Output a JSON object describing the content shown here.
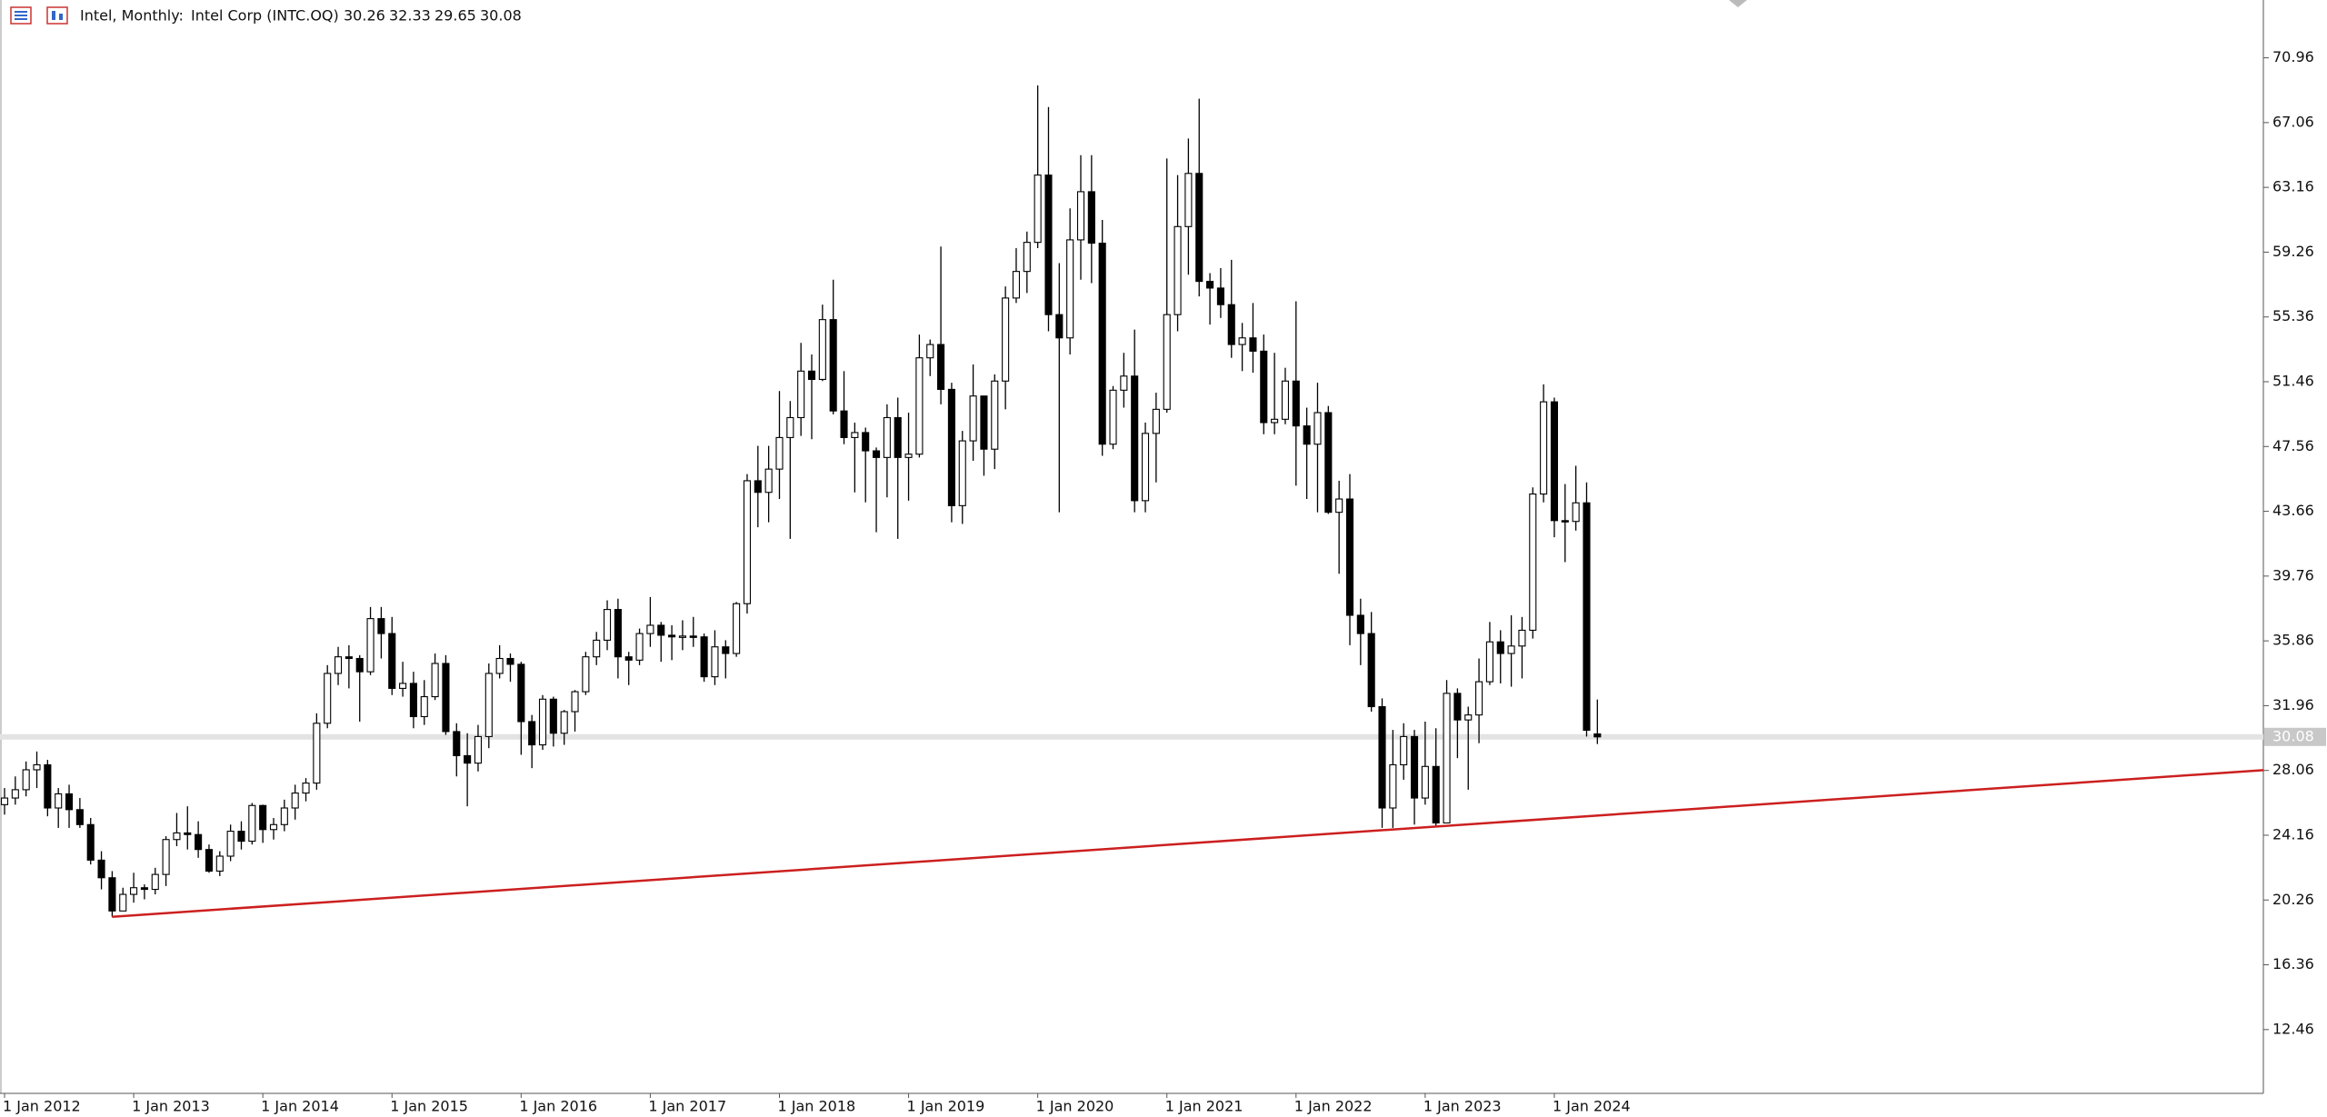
{
  "chart_data": {
    "type": "candlestick",
    "title": "Intel, Monthly:",
    "subtitle": "Intel Corp (INTC.OQ)",
    "categories": [
      "1 Jan 2012",
      null,
      null,
      null,
      null,
      null,
      null,
      null,
      null,
      null,
      null,
      null,
      "1 Jan 2013",
      null,
      null,
      null,
      null,
      null,
      null,
      null,
      null,
      null,
      null,
      null,
      "1 Jan 2014",
      null,
      null,
      null,
      null,
      null,
      null,
      null,
      null,
      null,
      null,
      null,
      "1 Jan 2015",
      null,
      null,
      null,
      null,
      null,
      null,
      null,
      null,
      null,
      null,
      null,
      "1 Jan 2016",
      null,
      null,
      null,
      null,
      null,
      null,
      null,
      null,
      null,
      null,
      null,
      "1 Jan 2017",
      null,
      null,
      null,
      null,
      null,
      null,
      null,
      null,
      null,
      null,
      null,
      "1 Jan 2018",
      null,
      null,
      null,
      null,
      null,
      null,
      null,
      null,
      null,
      null,
      null,
      "1 Jan 2019",
      null,
      null,
      null,
      null,
      null,
      null,
      null,
      null,
      null,
      null,
      null,
      "1 Jan 2020",
      null,
      null,
      null,
      null,
      null,
      null,
      null,
      null,
      null,
      null,
      null,
      "1 Jan 2021",
      null,
      null,
      null,
      null,
      null,
      null,
      null,
      null,
      null,
      null,
      null,
      "1 Jan 2022",
      null,
      null,
      null,
      null,
      null,
      null,
      null,
      null,
      null,
      null,
      null,
      "1 Jan 2023",
      null,
      null,
      null,
      null,
      null,
      null,
      null,
      null,
      null,
      null,
      null,
      "1 Jan 2024",
      null,
      null,
      null,
      null
    ],
    "open": [
      26.0,
      26.4,
      26.9,
      28.1,
      28.4,
      25.8,
      26.65,
      25.7,
      24.8,
      22.66,
      21.6,
      19.6,
      20.6,
      21.0,
      20.9,
      21.8,
      23.9,
      24.3,
      24.2,
      23.3,
      22.0,
      22.9,
      24.4,
      23.8,
      25.95,
      24.5,
      24.8,
      25.8,
      26.7,
      27.3,
      30.9,
      33.9,
      34.9,
      34.8,
      34.0,
      37.2,
      36.3,
      33.0,
      33.3,
      31.3,
      32.5,
      34.5,
      30.4,
      28.95,
      28.5,
      30.1,
      33.9,
      34.8,
      34.45,
      31.0,
      29.6,
      32.35,
      30.3,
      31.6,
      32.8,
      34.9,
      35.9,
      37.75,
      34.9,
      34.7,
      36.3,
      36.8,
      36.2,
      36.1,
      36.15,
      36.1,
      33.7,
      35.5,
      35.1,
      38.1,
      45.5,
      44.8,
      46.2,
      48.1,
      49.3,
      52.1,
      51.6,
      55.2,
      49.7,
      48.1,
      48.4,
      47.3,
      46.9,
      49.3,
      46.9,
      47.1,
      52.9,
      53.7,
      51.0,
      44.0,
      47.9,
      50.6,
      47.4,
      51.5,
      56.5,
      58.1,
      59.85,
      63.9,
      55.5,
      54.1,
      60.0,
      62.9,
      59.8,
      47.7,
      50.95,
      51.8,
      44.3,
      48.35,
      49.8,
      55.5,
      60.8,
      64.0,
      57.5,
      57.1,
      56.1,
      53.7,
      54.1,
      53.3,
      49.0,
      49.2,
      51.5,
      48.8,
      47.7,
      49.6,
      43.6,
      44.4,
      37.4,
      36.3,
      31.9,
      25.8,
      28.4,
      30.1,
      26.4,
      28.3,
      24.9,
      32.7,
      31.1,
      31.4,
      33.4,
      35.8,
      35.1,
      35.55,
      36.5,
      44.7,
      50.25,
      43.1,
      43.05,
      44.17,
      30.26
    ],
    "high": [
      27.0,
      27.7,
      28.6,
      29.2,
      28.7,
      27.0,
      27.2,
      26.4,
      25.2,
      23.2,
      22.0,
      21.0,
      21.9,
      21.2,
      22.2,
      24.1,
      25.5,
      25.9,
      25.0,
      23.6,
      23.2,
      24.8,
      25.0,
      26.1,
      26.0,
      25.2,
      26.3,
      27.2,
      27.6,
      31.5,
      34.4,
      35.5,
      35.6,
      35.0,
      37.9,
      37.9,
      37.3,
      34.6,
      34.0,
      33.5,
      35.1,
      35.0,
      30.9,
      30.3,
      30.8,
      34.5,
      35.6,
      35.1,
      34.6,
      31.4,
      32.6,
      32.5,
      31.7,
      32.9,
      35.2,
      36.4,
      38.3,
      38.4,
      35.2,
      36.6,
      38.5,
      37.0,
      36.8,
      37.1,
      37.3,
      36.3,
      36.5,
      35.9,
      38.2,
      45.9,
      47.6,
      47.6,
      50.9,
      50.3,
      53.8,
      53.1,
      56.1,
      57.6,
      52.1,
      49.0,
      48.7,
      47.5,
      50.1,
      50.5,
      49.6,
      54.3,
      54.0,
      59.6,
      51.4,
      48.5,
      52.5,
      50.6,
      51.9,
      57.2,
      59.5,
      60.5,
      69.3,
      68.0,
      58.6,
      61.9,
      65.1,
      65.1,
      61.2,
      51.2,
      53.2,
      54.6,
      49.0,
      50.8,
      64.9,
      63.9,
      66.1,
      68.5,
      58.0,
      58.3,
      58.8,
      55.0,
      56.2,
      54.3,
      53.2,
      52.3,
      56.3,
      49.9,
      51.4,
      50.0,
      45.5,
      45.9,
      38.4,
      37.6,
      32.4,
      30.5,
      30.9,
      30.5,
      31.0,
      30.6,
      33.5,
      33.0,
      31.9,
      34.8,
      37.0,
      36.5,
      37.4,
      37.3,
      45.1,
      51.3,
      50.5,
      45.3,
      46.4,
      45.4,
      32.33
    ],
    "low": [
      25.4,
      26.0,
      26.5,
      27.0,
      25.3,
      24.6,
      24.6,
      24.6,
      22.4,
      20.9,
      19.25,
      19.6,
      20.1,
      20.3,
      20.6,
      21.1,
      23.5,
      23.3,
      22.8,
      21.9,
      21.7,
      22.6,
      23.3,
      23.6,
      23.7,
      23.9,
      24.4,
      25.1,
      26.2,
      26.9,
      30.6,
      33.2,
      33.0,
      31.0,
      33.8,
      34.8,
      32.6,
      32.5,
      30.6,
      30.8,
      32.3,
      30.2,
      27.7,
      25.9,
      28.0,
      29.4,
      33.6,
      33.4,
      29.0,
      28.2,
      29.3,
      29.5,
      29.6,
      30.4,
      32.6,
      34.4,
      35.3,
      33.6,
      33.2,
      34.4,
      35.5,
      34.6,
      34.7,
      35.3,
      35.5,
      33.4,
      33.2,
      33.6,
      34.9,
      37.5,
      42.7,
      43.0,
      44.4,
      42.0,
      48.2,
      48.0,
      51.5,
      49.5,
      47.7,
      44.8,
      44.2,
      42.4,
      44.5,
      42.0,
      44.3,
      46.9,
      51.8,
      50.1,
      43.0,
      42.9,
      46.7,
      45.8,
      46.2,
      49.8,
      56.2,
      56.8,
      59.5,
      54.5,
      43.6,
      53.1,
      57.6,
      57.4,
      47.0,
      47.4,
      49.9,
      43.6,
      43.6,
      45.4,
      49.6,
      54.5,
      57.9,
      56.6,
      54.9,
      55.3,
      52.9,
      52.1,
      52.0,
      48.3,
      48.3,
      48.9,
      45.2,
      44.4,
      43.6,
      43.5,
      39.9,
      35.6,
      34.4,
      31.6,
      24.6,
      24.6,
      27.5,
      24.8,
      26.0,
      24.7,
      24.9,
      28.8,
      26.9,
      29.7,
      33.2,
      33.3,
      33.1,
      33.6,
      36.0,
      44.2,
      42.1,
      40.6,
      42.5,
      30.1,
      29.65
    ],
    "close": [
      26.4,
      26.9,
      28.1,
      28.4,
      25.8,
      26.65,
      25.7,
      24.8,
      22.66,
      21.6,
      19.6,
      20.6,
      21.0,
      20.9,
      21.8,
      23.9,
      24.3,
      24.2,
      23.3,
      22.0,
      22.9,
      24.4,
      23.8,
      25.95,
      24.5,
      24.8,
      25.8,
      26.7,
      27.3,
      30.9,
      33.9,
      34.9,
      34.8,
      34.0,
      37.2,
      36.3,
      33.0,
      33.3,
      31.3,
      32.5,
      34.5,
      30.4,
      28.95,
      28.5,
      30.1,
      33.9,
      34.8,
      34.45,
      31.0,
      29.6,
      32.35,
      30.3,
      31.6,
      32.8,
      34.9,
      35.9,
      37.75,
      34.9,
      34.7,
      36.3,
      36.8,
      36.2,
      36.1,
      36.15,
      36.1,
      33.7,
      35.5,
      35.1,
      38.1,
      45.5,
      44.8,
      46.2,
      48.1,
      49.3,
      52.1,
      51.6,
      55.2,
      49.7,
      48.1,
      48.4,
      47.3,
      46.9,
      49.3,
      46.9,
      47.1,
      52.9,
      53.7,
      51.0,
      44.0,
      47.9,
      50.6,
      47.4,
      51.5,
      56.5,
      58.1,
      59.85,
      63.9,
      55.5,
      54.1,
      60.0,
      62.9,
      59.8,
      47.7,
      50.95,
      51.8,
      44.3,
      48.35,
      49.8,
      55.5,
      60.8,
      64.0,
      57.5,
      57.1,
      56.1,
      53.7,
      54.1,
      53.3,
      49.0,
      49.2,
      51.5,
      48.8,
      47.7,
      49.6,
      43.6,
      44.4,
      37.4,
      36.3,
      31.9,
      25.8,
      28.4,
      30.1,
      26.4,
      28.3,
      24.9,
      32.7,
      31.1,
      31.4,
      33.4,
      35.8,
      35.1,
      35.55,
      36.5,
      44.7,
      50.25,
      43.1,
      43.05,
      44.17,
      30.48,
      30.08
    ],
    "up_color": "#ffffff",
    "down_color": "#000000",
    "outline_color": "#000000",
    "ylim": [
      8.62,
      74.44
    ],
    "yticks": [
      12.46,
      16.36,
      20.26,
      24.16,
      28.06,
      31.96,
      35.86,
      39.76,
      43.66,
      47.56,
      51.46,
      55.36,
      59.26,
      63.16,
      67.06,
      70.96
    ],
    "price_line_color": "#e3e3e3",
    "trend_line": {
      "color": "#cc1f1f",
      "start": {
        "category": 10,
        "value": 19.25
      },
      "through": {
        "category": 130,
        "value": 24.55
      }
    }
  }
}
